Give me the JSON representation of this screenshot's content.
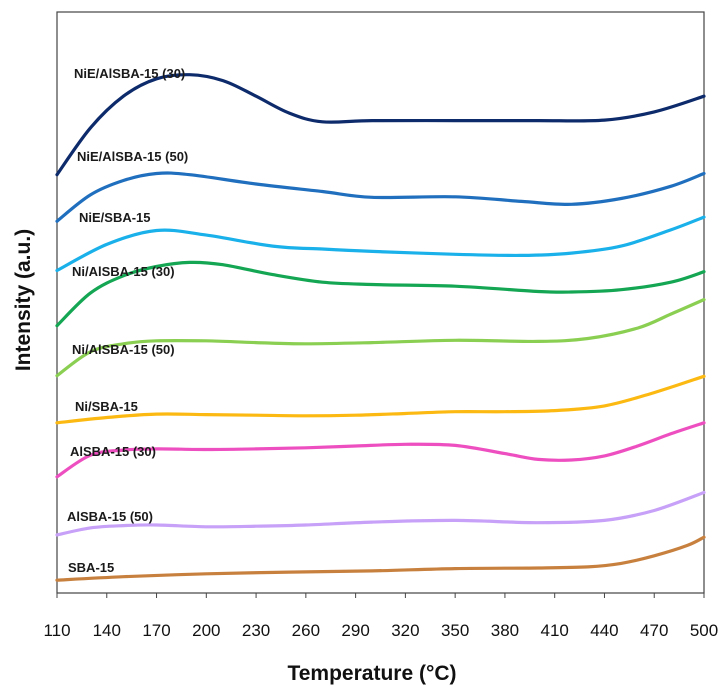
{
  "chart_data": {
    "type": "line",
    "title": "",
    "xlabel": "Temperature (°C)",
    "ylabel": "Intensity (a.u.)",
    "xlim": [
      110,
      500
    ],
    "x_ticks": [
      110,
      140,
      170,
      200,
      230,
      260,
      290,
      320,
      350,
      380,
      410,
      440,
      470,
      500
    ],
    "y_ticks_shown": false,
    "grid": false,
    "legend": "inline labels",
    "y_units": "arbitrary intensity units (0 = bottom of plot area, 100 = top)",
    "series": [
      {
        "name": "NiE/AlSBA-15 (30)",
        "color": "#0d2a6b",
        "x": [
          110,
          130,
          150,
          170,
          190,
          210,
          230,
          250,
          270,
          300,
          350,
          400,
          440,
          470,
          500
        ],
        "y": [
          72,
          80,
          85.5,
          88.5,
          89.2,
          88.2,
          85.5,
          82.6,
          81.1,
          81.3,
          81.3,
          81.3,
          81.4,
          82.8,
          85.5
        ]
      },
      {
        "name": "NiE/AlSBA-15 (50)",
        "color": "#1f6fbe",
        "x": [
          110,
          130,
          150,
          170,
          190,
          230,
          270,
          300,
          350,
          390,
          420,
          450,
          480,
          500
        ],
        "y": [
          64,
          68.5,
          71,
          72.2,
          72,
          70.4,
          69.1,
          68.1,
          68.2,
          67.4,
          66.9,
          67.9,
          70,
          72.2
        ]
      },
      {
        "name": "NiE/SBA-15",
        "color": "#1ab0ea",
        "x": [
          110,
          140,
          170,
          200,
          240,
          270,
          300,
          350,
          390,
          420,
          450,
          480,
          500
        ],
        "y": [
          55.5,
          60,
          62.4,
          61.6,
          59.7,
          59.2,
          58.8,
          58.3,
          58.1,
          58.5,
          59.7,
          62.5,
          64.7
        ]
      },
      {
        "name": "Ni/AlSBA-15 (30)",
        "color": "#14a653",
        "x": [
          110,
          130,
          150,
          170,
          190,
          210,
          240,
          270,
          300,
          350,
          400,
          420,
          450,
          480,
          500
        ],
        "y": [
          46,
          51.6,
          54.6,
          56.2,
          56.9,
          56.5,
          54.8,
          53.5,
          53.1,
          52.8,
          51.9,
          51.8,
          52.2,
          53.5,
          55.3
        ]
      },
      {
        "name": "Ni/AlSBA-15 (50)",
        "color": "#8bcf52",
        "x": [
          110,
          130,
          150,
          170,
          200,
          230,
          260,
          300,
          350,
          400,
          430,
          460,
          480,
          500
        ],
        "y": [
          37.4,
          41.5,
          42.9,
          43.4,
          43.4,
          43.1,
          42.9,
          43.1,
          43.5,
          43.3,
          43.8,
          45.6,
          48,
          50.5
        ]
      },
      {
        "name": "Ni/SBA-15",
        "color": "#fbb912",
        "x": [
          110,
          140,
          170,
          200,
          230,
          260,
          290,
          320,
          350,
          380,
          410,
          440,
          470,
          500
        ],
        "y": [
          29.3,
          30.2,
          30.8,
          30.7,
          30.6,
          30.5,
          30.6,
          30.9,
          31.2,
          31.2,
          31.4,
          32.2,
          34.5,
          37.3
        ]
      },
      {
        "name": "AlSBA-15 (30)",
        "color": "#ee4fc0",
        "x": [
          110,
          130,
          150,
          170,
          200,
          230,
          260,
          290,
          320,
          350,
          380,
          400,
          420,
          440,
          460,
          480,
          500
        ],
        "y": [
          20,
          23.7,
          24.6,
          24.8,
          24.7,
          24.8,
          25,
          25.3,
          25.6,
          25.4,
          24,
          23,
          22.9,
          23.6,
          25.3,
          27.4,
          29.3
        ]
      },
      {
        "name": "AlSBA-15 (50)",
        "color": "#c7a0f8",
        "x": [
          110,
          130,
          150,
          170,
          200,
          230,
          260,
          300,
          350,
          400,
          440,
          470,
          500
        ],
        "y": [
          10,
          11.2,
          11.6,
          11.7,
          11.4,
          11.5,
          11.7,
          12.2,
          12.5,
          12.1,
          12.5,
          14.2,
          17.3
        ]
      },
      {
        "name": "SBA-15",
        "color": "#c8803e",
        "x": [
          110,
          150,
          200,
          250,
          300,
          350,
          400,
          430,
          450,
          470,
          490,
          500
        ],
        "y": [
          2.2,
          2.8,
          3.3,
          3.6,
          3.8,
          4.2,
          4.3,
          4.5,
          5.1,
          6.4,
          8.2,
          9.6
        ]
      }
    ]
  }
}
